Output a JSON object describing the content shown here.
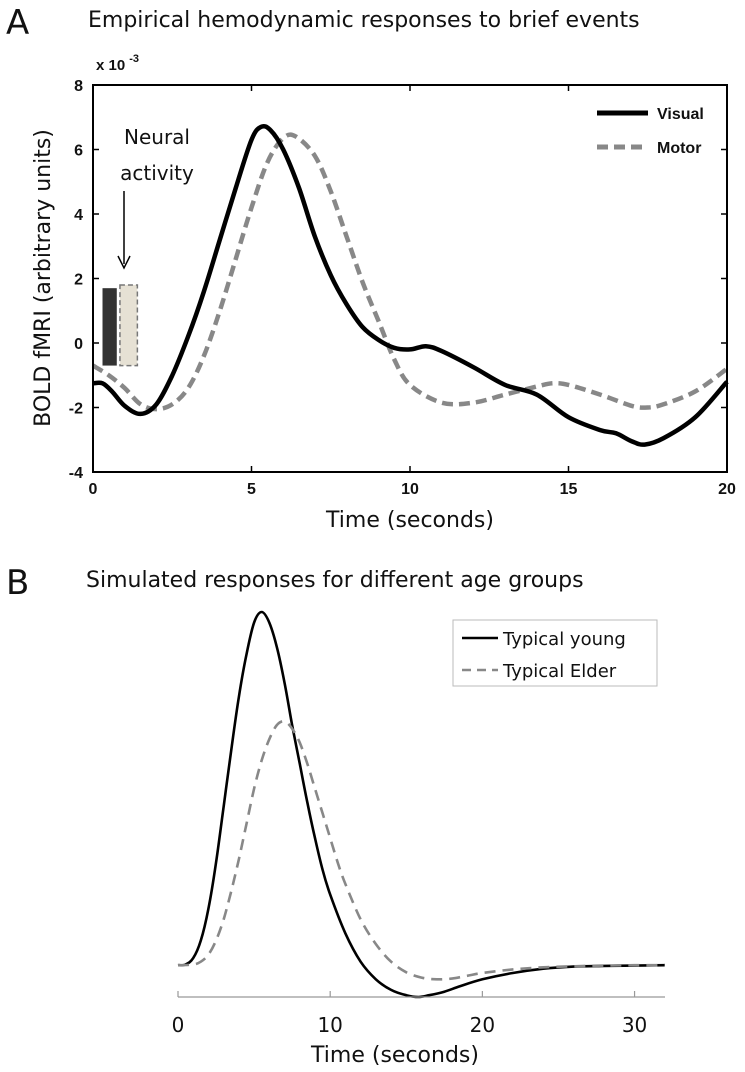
{
  "colors": {
    "series_solid": "#000000",
    "series_dashed": "#888888",
    "axis": "#000000",
    "axis_light": "#999999",
    "neural_bar_dark": "#333333",
    "neural_bar_light": "#e6e1d4"
  },
  "chart_data": [
    {
      "panel_label": "A",
      "type": "line",
      "title": "Empirical hemodynamic responses to brief events",
      "xlabel": "Time (seconds)",
      "ylabel": "BOLD fMRI (arbitrary units)",
      "y_multiplier_base": "x 10",
      "y_multiplier_exponent": "-3",
      "xlim": [
        0,
        20
      ],
      "ylim": [
        -4,
        8
      ],
      "xticks": [
        0,
        5,
        10,
        15,
        20
      ],
      "yticks": [
        -4,
        -2,
        0,
        2,
        4,
        6,
        8
      ],
      "xtick_labels": [
        "0",
        "5",
        "10",
        "15",
        "20"
      ],
      "ytick_labels": [
        "-4",
        "-2",
        "0",
        "2",
        "4",
        "6",
        "8"
      ],
      "legend_position": "top-right",
      "annotation": {
        "text_line1": "Neural",
        "text_line2": "activity",
        "x": 1.0,
        "y": 2.3
      },
      "neural_bars": [
        {
          "x_start": 0.3,
          "x_end": 0.75,
          "y_bottom": -0.7,
          "y_top": 1.7,
          "style": "dark"
        },
        {
          "x_start": 0.85,
          "x_end": 1.4,
          "y_bottom": -0.7,
          "y_top": 1.8,
          "style": "light-dashed"
        }
      ],
      "series": [
        {
          "name": "Visual",
          "style": "solid",
          "points": [
            [
              0,
              -1.25
            ],
            [
              0.3,
              -1.25
            ],
            [
              0.6,
              -1.5
            ],
            [
              1,
              -1.95
            ],
            [
              1.5,
              -2.2
            ],
            [
              2,
              -1.9
            ],
            [
              2.5,
              -1.0
            ],
            [
              3,
              0.2
            ],
            [
              3.5,
              1.6
            ],
            [
              4,
              3.2
            ],
            [
              4.5,
              4.8
            ],
            [
              5,
              6.3
            ],
            [
              5.3,
              6.7
            ],
            [
              5.6,
              6.6
            ],
            [
              6,
              6.0
            ],
            [
              6.5,
              4.8
            ],
            [
              7,
              3.3
            ],
            [
              7.5,
              2.1
            ],
            [
              8,
              1.2
            ],
            [
              8.5,
              0.5
            ],
            [
              9,
              0.1
            ],
            [
              9.5,
              -0.15
            ],
            [
              10,
              -0.2
            ],
            [
              10.5,
              -0.1
            ],
            [
              11,
              -0.25
            ],
            [
              12,
              -0.75
            ],
            [
              13,
              -1.3
            ],
            [
              14,
              -1.6
            ],
            [
              15,
              -2.3
            ],
            [
              16,
              -2.7
            ],
            [
              16.5,
              -2.8
            ],
            [
              17,
              -3.05
            ],
            [
              17.4,
              -3.15
            ],
            [
              18,
              -2.95
            ],
            [
              19,
              -2.3
            ],
            [
              20,
              -1.2
            ]
          ]
        },
        {
          "name": "Motor",
          "style": "dashed",
          "points": [
            [
              0,
              -0.7
            ],
            [
              0.5,
              -1.0
            ],
            [
              1,
              -1.4
            ],
            [
              1.5,
              -1.9
            ],
            [
              2,
              -2.05
            ],
            [
              2.5,
              -1.9
            ],
            [
              3,
              -1.4
            ],
            [
              3.5,
              -0.4
            ],
            [
              4,
              1.0
            ],
            [
              4.5,
              2.6
            ],
            [
              5,
              4.2
            ],
            [
              5.5,
              5.6
            ],
            [
              6,
              6.35
            ],
            [
              6.4,
              6.4
            ],
            [
              7,
              5.8
            ],
            [
              7.5,
              4.7
            ],
            [
              8,
              3.3
            ],
            [
              8.5,
              1.9
            ],
            [
              9,
              0.7
            ],
            [
              9.5,
              -0.5
            ],
            [
              10,
              -1.3
            ],
            [
              11,
              -1.85
            ],
            [
              12,
              -1.85
            ],
            [
              13,
              -1.6
            ],
            [
              14,
              -1.35
            ],
            [
              14.5,
              -1.25
            ],
            [
              15,
              -1.3
            ],
            [
              16,
              -1.6
            ],
            [
              17,
              -1.95
            ],
            [
              17.5,
              -2.0
            ],
            [
              18,
              -1.9
            ],
            [
              19,
              -1.5
            ],
            [
              20,
              -0.8
            ]
          ]
        }
      ]
    },
    {
      "panel_label": "B",
      "type": "line",
      "title": "Simulated responses for different age groups",
      "xlabel": "Time (seconds)",
      "ylabel": "",
      "xlim": [
        0,
        32
      ],
      "ylim": [
        -0.09,
        1.0
      ],
      "xticks": [
        0,
        10,
        20,
        30
      ],
      "xtick_labels": [
        "0",
        "10",
        "20",
        "30"
      ],
      "legend_position": "top-right",
      "series": [
        {
          "name": "Typical young",
          "style": "solid",
          "points": [
            [
              0,
              0
            ],
            [
              0.5,
              0.002
            ],
            [
              1,
              0.02
            ],
            [
              1.5,
              0.07
            ],
            [
              2,
              0.16
            ],
            [
              2.5,
              0.29
            ],
            [
              3,
              0.45
            ],
            [
              3.5,
              0.61
            ],
            [
              4,
              0.76
            ],
            [
              4.5,
              0.88
            ],
            [
              5,
              0.97
            ],
            [
              5.5,
              1.0
            ],
            [
              6,
              0.97
            ],
            [
              6.5,
              0.9
            ],
            [
              7,
              0.8
            ],
            [
              7.5,
              0.68
            ],
            [
              8,
              0.57
            ],
            [
              8.5,
              0.46
            ],
            [
              9,
              0.36
            ],
            [
              9.5,
              0.27
            ],
            [
              10,
              0.2
            ],
            [
              11,
              0.09
            ],
            [
              12,
              0.01
            ],
            [
              13,
              -0.04
            ],
            [
              14,
              -0.07
            ],
            [
              15,
              -0.085
            ],
            [
              15.8,
              -0.09
            ],
            [
              16.5,
              -0.085
            ],
            [
              17.5,
              -0.075
            ],
            [
              18.5,
              -0.06
            ],
            [
              20,
              -0.04
            ],
            [
              22,
              -0.022
            ],
            [
              24,
              -0.01
            ],
            [
              26,
              -0.004
            ],
            [
              28,
              -0.002
            ],
            [
              30,
              -0.001
            ],
            [
              32,
              0
            ]
          ]
        },
        {
          "name": "Typical Elder",
          "style": "dashed",
          "points": [
            [
              0,
              0
            ],
            [
              1,
              0.002
            ],
            [
              1.5,
              0.01
            ],
            [
              2,
              0.03
            ],
            [
              2.5,
              0.07
            ],
            [
              3,
              0.13
            ],
            [
              3.5,
              0.21
            ],
            [
              4,
              0.3
            ],
            [
              4.5,
              0.4
            ],
            [
              5,
              0.5
            ],
            [
              5.5,
              0.58
            ],
            [
              6,
              0.64
            ],
            [
              6.5,
              0.68
            ],
            [
              7,
              0.69
            ],
            [
              7.5,
              0.67
            ],
            [
              8,
              0.63
            ],
            [
              8.5,
              0.57
            ],
            [
              9,
              0.5
            ],
            [
              9.5,
              0.43
            ],
            [
              10,
              0.36
            ],
            [
              10.5,
              0.29
            ],
            [
              11,
              0.23
            ],
            [
              12,
              0.13
            ],
            [
              13,
              0.06
            ],
            [
              14,
              0.01
            ],
            [
              15,
              -0.02
            ],
            [
              16,
              -0.035
            ],
            [
              17,
              -0.04
            ],
            [
              18,
              -0.038
            ],
            [
              19,
              -0.03
            ],
            [
              20,
              -0.022
            ],
            [
              22,
              -0.012
            ],
            [
              24,
              -0.006
            ],
            [
              26,
              -0.003
            ],
            [
              28,
              -0.001
            ],
            [
              30,
              0
            ],
            [
              32,
              0
            ]
          ]
        }
      ]
    }
  ]
}
